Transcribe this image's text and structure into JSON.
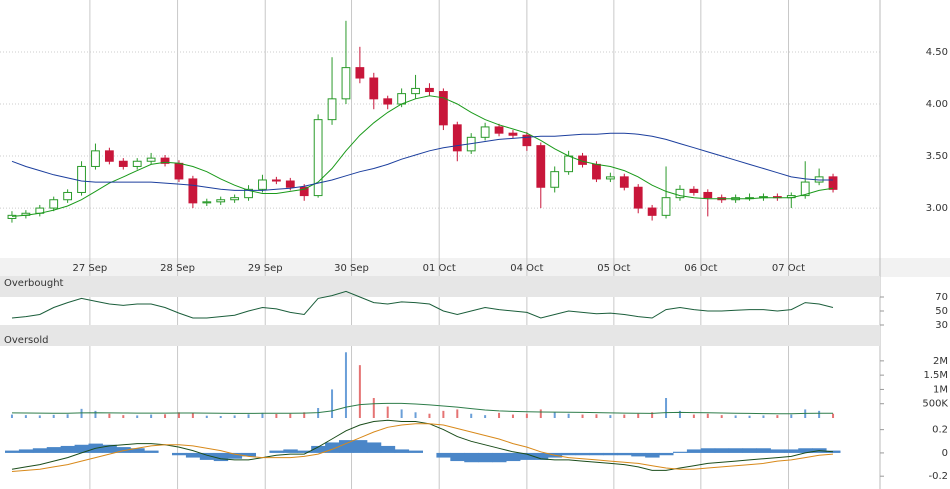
{
  "chart_data": [
    {
      "type": "candlestick",
      "xlim": [
        -0.5,
        59.5
      ],
      "xticks": [
        {
          "value": 5.6,
          "label": "27 Sep"
        },
        {
          "value": 11.9,
          "label": "28 Sep"
        },
        {
          "value": 18.2,
          "label": "29 Sep"
        },
        {
          "value": 24.4,
          "label": "30 Sep"
        },
        {
          "value": 30.7,
          "label": "01 Oct"
        },
        {
          "value": 37.0,
          "label": "04 Oct"
        },
        {
          "value": 43.25,
          "label": "05 Oct"
        },
        {
          "value": 49.5,
          "label": "06 Oct"
        },
        {
          "value": 55.8,
          "label": "07 Oct"
        }
      ],
      "ylim": [
        2.52,
        5.0
      ],
      "yticks": [
        {
          "value": 3.0,
          "label": "3.00"
        },
        {
          "value": 3.5,
          "label": "3.50"
        },
        {
          "value": 4.0,
          "label": "4.00"
        },
        {
          "value": 4.5,
          "label": "4.50"
        }
      ],
      "grid": true,
      "up_color": "#2a9a2a",
      "down_color": "#c8163a",
      "ohlc": [
        [
          2.9,
          2.97,
          2.86,
          2.93
        ],
        [
          2.93,
          2.98,
          2.9,
          2.95
        ],
        [
          2.95,
          3.03,
          2.92,
          3.0
        ],
        [
          3.0,
          3.11,
          2.97,
          3.08
        ],
        [
          3.08,
          3.18,
          3.05,
          3.15
        ],
        [
          3.15,
          3.45,
          3.12,
          3.4
        ],
        [
          3.4,
          3.62,
          3.37,
          3.55
        ],
        [
          3.55,
          3.58,
          3.42,
          3.45
        ],
        [
          3.45,
          3.48,
          3.37,
          3.4
        ],
        [
          3.4,
          3.48,
          3.37,
          3.45
        ],
        [
          3.45,
          3.53,
          3.42,
          3.48
        ],
        [
          3.48,
          3.51,
          3.4,
          3.43
        ],
        [
          3.43,
          3.46,
          3.25,
          3.28
        ],
        [
          3.28,
          3.31,
          3.0,
          3.05
        ],
        [
          3.05,
          3.09,
          3.02,
          3.06
        ],
        [
          3.06,
          3.11,
          3.03,
          3.08
        ],
        [
          3.08,
          3.13,
          3.05,
          3.1
        ],
        [
          3.1,
          3.22,
          3.07,
          3.18
        ],
        [
          3.18,
          3.32,
          3.15,
          3.27
        ],
        [
          3.27,
          3.3,
          3.23,
          3.26
        ],
        [
          3.26,
          3.29,
          3.17,
          3.2
        ],
        [
          3.2,
          3.23,
          3.07,
          3.12
        ],
        [
          3.12,
          3.9,
          3.1,
          3.85
        ],
        [
          3.85,
          4.45,
          3.8,
          4.05
        ],
        [
          4.05,
          4.8,
          4.0,
          4.35
        ],
        [
          4.35,
          4.55,
          4.2,
          4.25
        ],
        [
          4.25,
          4.3,
          3.95,
          4.05
        ],
        [
          4.05,
          4.08,
          3.95,
          4.0
        ],
        [
          4.0,
          4.15,
          3.97,
          4.1
        ],
        [
          4.1,
          4.28,
          4.05,
          4.15
        ],
        [
          4.15,
          4.2,
          4.08,
          4.12
        ],
        [
          4.12,
          4.15,
          3.75,
          3.8
        ],
        [
          3.8,
          3.83,
          3.45,
          3.55
        ],
        [
          3.55,
          3.72,
          3.52,
          3.68
        ],
        [
          3.68,
          3.82,
          3.65,
          3.78
        ],
        [
          3.78,
          3.81,
          3.69,
          3.72
        ],
        [
          3.72,
          3.75,
          3.67,
          3.7
        ],
        [
          3.7,
          3.73,
          3.55,
          3.6
        ],
        [
          3.6,
          3.63,
          3.0,
          3.2
        ],
        [
          3.2,
          3.4,
          3.15,
          3.35
        ],
        [
          3.35,
          3.55,
          3.32,
          3.5
        ],
        [
          3.5,
          3.53,
          3.39,
          3.42
        ],
        [
          3.42,
          3.45,
          3.25,
          3.28
        ],
        [
          3.28,
          3.34,
          3.25,
          3.3
        ],
        [
          3.3,
          3.33,
          3.17,
          3.2
        ],
        [
          3.2,
          3.23,
          2.95,
          3.0
        ],
        [
          3.0,
          3.03,
          2.88,
          2.93
        ],
        [
          2.93,
          3.4,
          2.9,
          3.1
        ],
        [
          3.1,
          3.22,
          3.07,
          3.18
        ],
        [
          3.18,
          3.21,
          3.12,
          3.15
        ],
        [
          3.15,
          3.18,
          2.92,
          3.1
        ],
        [
          3.1,
          3.13,
          3.05,
          3.08
        ],
        [
          3.08,
          3.13,
          3.05,
          3.1
        ],
        [
          3.1,
          3.14,
          3.07,
          3.1
        ],
        [
          3.1,
          3.14,
          3.07,
          3.11
        ],
        [
          3.11,
          3.14,
          3.07,
          3.1
        ],
        [
          3.1,
          3.15,
          3.0,
          3.12
        ],
        [
          3.12,
          3.45,
          3.09,
          3.25
        ],
        [
          3.25,
          3.38,
          3.22,
          3.3
        ],
        [
          3.3,
          3.33,
          3.15,
          3.18
        ]
      ],
      "series": [
        {
          "color": "#1a9a1a",
          "values": [
            2.92,
            2.93,
            2.95,
            2.98,
            3.02,
            3.08,
            3.16,
            3.24,
            3.3,
            3.36,
            3.42,
            3.44,
            3.43,
            3.4,
            3.35,
            3.28,
            3.22,
            3.17,
            3.14,
            3.14,
            3.16,
            3.18,
            3.25,
            3.38,
            3.55,
            3.7,
            3.82,
            3.92,
            4.0,
            4.05,
            4.08,
            4.06,
            4.0,
            3.92,
            3.85,
            3.8,
            3.76,
            3.72,
            3.65,
            3.57,
            3.5,
            3.45,
            3.42,
            3.4,
            3.36,
            3.3,
            3.22,
            3.16,
            3.12,
            3.1,
            3.09,
            3.09,
            3.09,
            3.09,
            3.1,
            3.1,
            3.1,
            3.13,
            3.17,
            3.19
          ]
        },
        {
          "color": "#1c3f9e",
          "values": [
            3.45,
            3.4,
            3.36,
            3.32,
            3.29,
            3.26,
            3.25,
            3.25,
            3.25,
            3.25,
            3.25,
            3.24,
            3.23,
            3.22,
            3.2,
            3.18,
            3.17,
            3.17,
            3.17,
            3.18,
            3.19,
            3.21,
            3.24,
            3.27,
            3.31,
            3.35,
            3.38,
            3.42,
            3.47,
            3.51,
            3.55,
            3.58,
            3.6,
            3.62,
            3.64,
            3.66,
            3.67,
            3.68,
            3.69,
            3.69,
            3.7,
            3.71,
            3.71,
            3.72,
            3.72,
            3.71,
            3.69,
            3.66,
            3.62,
            3.58,
            3.54,
            3.5,
            3.46,
            3.42,
            3.38,
            3.34,
            3.3,
            3.28,
            3.27,
            3.27
          ]
        }
      ]
    },
    {
      "type": "line",
      "ylim": [
        0,
        100
      ],
      "yticks": [
        70,
        50,
        30
      ],
      "bands": [
        {
          "label": "Overbought",
          "range": [
            70,
            100
          ]
        },
        {
          "label": "Oversold",
          "range": [
            0,
            30
          ]
        }
      ],
      "series": [
        {
          "color": "#1b5e3b",
          "values": [
            40,
            42,
            45,
            55,
            62,
            68,
            64,
            60,
            58,
            60,
            60,
            55,
            47,
            40,
            40,
            42,
            44,
            50,
            55,
            53,
            48,
            45,
            68,
            72,
            78,
            70,
            62,
            60,
            63,
            62,
            60,
            50,
            45,
            50,
            55,
            52,
            50,
            48,
            40,
            45,
            50,
            48,
            46,
            47,
            45,
            42,
            40,
            52,
            55,
            52,
            50,
            50,
            51,
            52,
            52,
            50,
            52,
            62,
            60,
            55
          ]
        }
      ]
    },
    {
      "type": "bar",
      "ylim": [
        0,
        2450000
      ],
      "yticks": [
        {
          "value": 2000000,
          "label": "2M"
        },
        {
          "value": 1500000,
          "label": "1.5M"
        },
        {
          "value": 1000000,
          "label": "1M"
        },
        {
          "value": 500000,
          "label": "500K"
        }
      ],
      "up_color": "#6a9fd8",
      "down_color": "#e57373",
      "values": [
        120000,
        100000,
        90000,
        110000,
        130000,
        320000,
        250000,
        150000,
        100000,
        90000,
        120000,
        130000,
        200000,
        180000,
        80000,
        70000,
        90000,
        130000,
        180000,
        140000,
        150000,
        200000,
        350000,
        1000000,
        2300000,
        1850000,
        700000,
        400000,
        300000,
        200000,
        150000,
        250000,
        300000,
        150000,
        100000,
        180000,
        120000,
        150000,
        300000,
        200000,
        150000,
        120000,
        130000,
        100000,
        120000,
        150000,
        200000,
        700000,
        250000,
        120000,
        150000,
        100000,
        90000,
        80000,
        90000,
        100000,
        120000,
        300000,
        250000,
        150000
      ],
      "series": [
        {
          "color": "#2e7d4a",
          "values": [
            180000,
            175000,
            170000,
            165000,
            165000,
            180000,
            185000,
            180000,
            175000,
            170000,
            170000,
            170000,
            175000,
            175000,
            170000,
            165000,
            160000,
            160000,
            165000,
            165000,
            165000,
            170000,
            190000,
            250000,
            380000,
            470000,
            500000,
            510000,
            510000,
            490000,
            460000,
            420000,
            380000,
            330000,
            280000,
            250000,
            230000,
            220000,
            210000,
            205000,
            200000,
            195000,
            190000,
            180000,
            170000,
            165000,
            160000,
            190000,
            195000,
            190000,
            185000,
            175000,
            165000,
            160000,
            155000,
            150000,
            150000,
            160000,
            165000,
            165000
          ]
        }
      ]
    },
    {
      "type": "macd",
      "ylim": [
        -0.31,
        0.3
      ],
      "yticks": [
        0.2,
        0,
        -0.2
      ],
      "histogram": {
        "color": "#4a86c8",
        "values": [
          0.02,
          0.03,
          0.04,
          0.05,
          0.06,
          0.07,
          0.08,
          0.07,
          0.05,
          0.04,
          0.02,
          0.0,
          -0.02,
          -0.04,
          -0.06,
          -0.07,
          -0.05,
          -0.03,
          0.0,
          0.02,
          0.03,
          0.02,
          0.06,
          0.09,
          0.11,
          0.11,
          0.09,
          0.06,
          0.03,
          0.02,
          0.0,
          -0.04,
          -0.07,
          -0.08,
          -0.08,
          -0.08,
          -0.07,
          -0.06,
          -0.06,
          -0.04,
          -0.02,
          -0.02,
          -0.02,
          -0.02,
          -0.02,
          -0.03,
          -0.04,
          -0.02,
          0.01,
          0.03,
          0.04,
          0.04,
          0.04,
          0.04,
          0.04,
          0.03,
          0.03,
          0.04,
          0.04,
          0.02
        ]
      },
      "series": [
        {
          "color": "#1b4d1b",
          "values": [
            -0.14,
            -0.12,
            -0.1,
            -0.07,
            -0.04,
            0.0,
            0.04,
            0.06,
            0.07,
            0.08,
            0.08,
            0.07,
            0.05,
            0.02,
            -0.02,
            -0.05,
            -0.06,
            -0.06,
            -0.04,
            -0.02,
            -0.01,
            -0.01,
            0.05,
            0.12,
            0.19,
            0.24,
            0.27,
            0.28,
            0.27,
            0.27,
            0.25,
            0.2,
            0.14,
            0.1,
            0.07,
            0.04,
            0.01,
            -0.01,
            -0.05,
            -0.06,
            -0.06,
            -0.07,
            -0.08,
            -0.09,
            -0.1,
            -0.12,
            -0.15,
            -0.15,
            -0.13,
            -0.11,
            -0.09,
            -0.08,
            -0.07,
            -0.06,
            -0.05,
            -0.04,
            -0.03,
            0.0,
            0.02,
            0.01
          ]
        },
        {
          "color": "#d8891a",
          "values": [
            -0.16,
            -0.15,
            -0.14,
            -0.12,
            -0.1,
            -0.07,
            -0.04,
            -0.01,
            0.02,
            0.04,
            0.06,
            0.07,
            0.07,
            0.06,
            0.04,
            0.02,
            -0.01,
            -0.03,
            -0.04,
            -0.04,
            -0.04,
            -0.03,
            -0.01,
            0.03,
            0.08,
            0.13,
            0.18,
            0.22,
            0.24,
            0.25,
            0.25,
            0.24,
            0.21,
            0.18,
            0.15,
            0.12,
            0.08,
            0.05,
            0.01,
            -0.02,
            -0.04,
            -0.05,
            -0.06,
            -0.07,
            -0.08,
            -0.09,
            -0.11,
            -0.13,
            -0.14,
            -0.14,
            -0.13,
            -0.12,
            -0.11,
            -0.1,
            -0.09,
            -0.07,
            -0.06,
            -0.04,
            -0.02,
            -0.01
          ]
        }
      ]
    }
  ]
}
